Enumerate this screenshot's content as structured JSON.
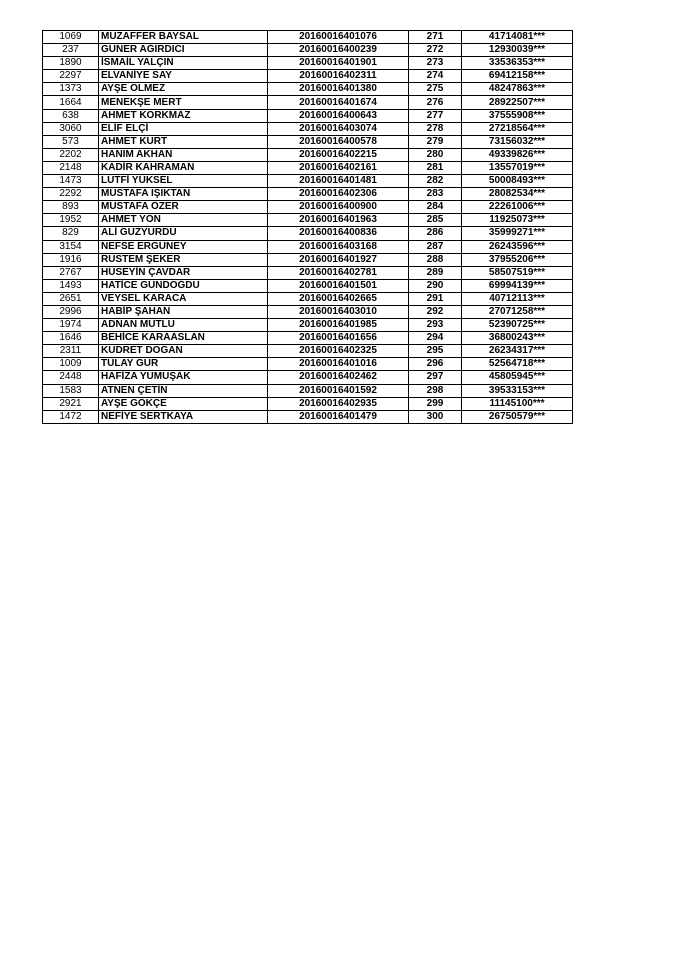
{
  "table": {
    "rows": [
      [
        "1069",
        "MUZAFFER BAYSAL",
        "20160016401076",
        "271",
        "41714081***"
      ],
      [
        "237",
        "GÜNER AĞIRDICI",
        "20160016400239",
        "272",
        "12930039***"
      ],
      [
        "1890",
        "İSMAİL YALÇIN",
        "20160016401901",
        "273",
        "33536353***"
      ],
      [
        "2297",
        "ELVANİYE SAY",
        "20160016402311",
        "274",
        "69412158***"
      ],
      [
        "1373",
        "AYŞE ÖLMEZ",
        "20160016401380",
        "275",
        "48247863***"
      ],
      [
        "1664",
        "MENEKŞE MERT",
        "20160016401674",
        "276",
        "28922507***"
      ],
      [
        "638",
        "AHMET KORKMAZ",
        "20160016400643",
        "277",
        "37555908***"
      ],
      [
        "3060",
        "ELİF ELÇİ",
        "20160016403074",
        "278",
        "27218564***"
      ],
      [
        "573",
        "AHMET KURT",
        "20160016400578",
        "279",
        "73156032***"
      ],
      [
        "2202",
        "HANIM AKHAN",
        "20160016402215",
        "280",
        "49339826***"
      ],
      [
        "2148",
        "KADİR KAHRAMAN",
        "20160016402161",
        "281",
        "13557019***"
      ],
      [
        "1473",
        "LÜTFİ YÜKSEL",
        "20160016401481",
        "282",
        "50008493***"
      ],
      [
        "2292",
        "MUSTAFA IŞIKTAN",
        "20160016402306",
        "283",
        "28082534***"
      ],
      [
        "893",
        "MUSTAFA ÖZER",
        "20160016400900",
        "284",
        "22261006***"
      ],
      [
        "1952",
        "AHMET YÖN",
        "20160016401963",
        "285",
        "11925073***"
      ],
      [
        "829",
        "ALİ GÜZYURDU",
        "20160016400836",
        "286",
        "35999271***"
      ],
      [
        "3154",
        "NEFSE ERGÜNEY",
        "20160016403168",
        "287",
        "26243596***"
      ],
      [
        "1916",
        "RÜSTEM ŞEKER",
        "20160016401927",
        "288",
        "37955206***"
      ],
      [
        "2767",
        "HÜSEYİN ÇAVDAR",
        "20160016402781",
        "289",
        "58507519***"
      ],
      [
        "1493",
        "HATİCE GÜNDOĞDU",
        "20160016401501",
        "290",
        "69994139***"
      ],
      [
        "2651",
        "VEYSEL KARACA",
        "20160016402665",
        "291",
        "40712113***"
      ],
      [
        "2996",
        "HABİP ŞAHAN",
        "20160016403010",
        "292",
        "27071258***"
      ],
      [
        "1974",
        "ADNAN MUTLU",
        "20160016401985",
        "293",
        "52390725***"
      ],
      [
        "1646",
        "BEHİCE KARAASLAN",
        "20160016401656",
        "294",
        "36800243***"
      ],
      [
        "2311",
        "KUDRET DOĞAN",
        "20160016402325",
        "295",
        "26234317***"
      ],
      [
        "1009",
        "TÜLAY GÜR",
        "20160016401016",
        "296",
        "52564718***"
      ],
      [
        "2448",
        "HAFİZA YUMUŞAK",
        "20160016402462",
        "297",
        "45805945***"
      ],
      [
        "1583",
        "ATNEN ÇETİN",
        "20160016401592",
        "298",
        "39533153***"
      ],
      [
        "2921",
        "AYŞE GÖKÇE",
        "20160016402935",
        "299",
        "11145100***"
      ],
      [
        "1472",
        "NEFİYE SERTKAYA",
        "20160016401479",
        "300",
        "26750579***"
      ]
    ]
  }
}
